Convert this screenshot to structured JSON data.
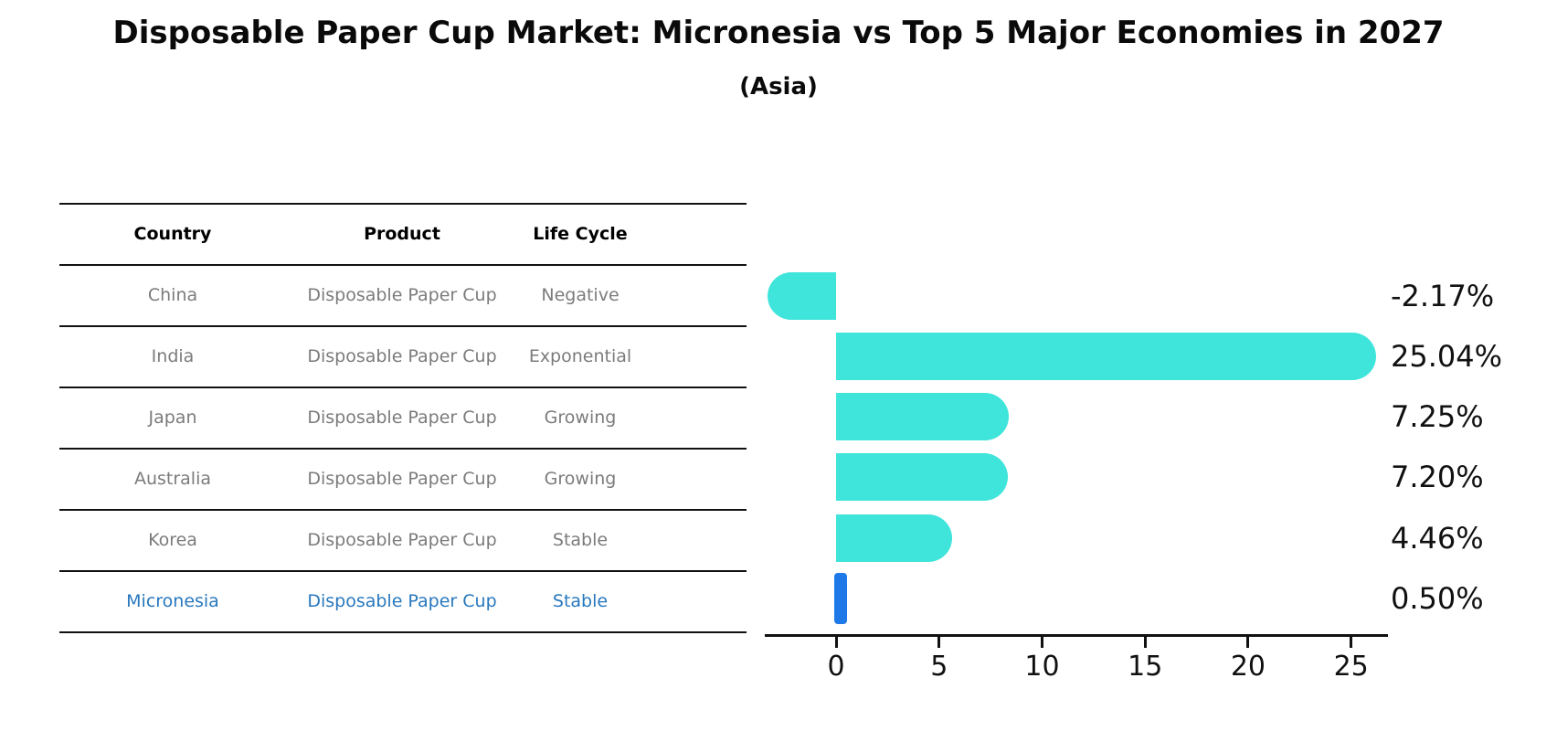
{
  "title": "Disposable Paper Cup Market: Micronesia vs Top 5 Major Economies in 2027",
  "subtitle": "(Asia)",
  "table": {
    "headers": [
      "Country",
      "Product",
      "Life Cycle"
    ],
    "rows": [
      {
        "country": "China",
        "product": "Disposable Paper Cup",
        "life_cycle": "Negative",
        "highlight": false
      },
      {
        "country": "India",
        "product": "Disposable Paper Cup",
        "life_cycle": "Exponential",
        "highlight": false
      },
      {
        "country": "Japan",
        "product": "Disposable Paper Cup",
        "life_cycle": "Growing",
        "highlight": false
      },
      {
        "country": "Australia",
        "product": "Disposable Paper Cup",
        "life_cycle": "Growing",
        "highlight": false
      },
      {
        "country": "Korea",
        "product": "Disposable Paper Cup",
        "life_cycle": "Stable",
        "highlight": false
      },
      {
        "country": "Micronesia",
        "product": "Disposable Paper Cup",
        "life_cycle": "Stable",
        "highlight": true
      }
    ]
  },
  "chart_data": {
    "type": "bar",
    "orientation": "horizontal",
    "title": "Disposable Paper Cup Market: Micronesia vs Top 5 Major Economies in 2027 (Asia)",
    "categories": [
      "China",
      "India",
      "Japan",
      "Australia",
      "Korea",
      "Micronesia"
    ],
    "values": [
      -2.17,
      25.04,
      7.25,
      7.2,
      4.46,
      0.5
    ],
    "value_labels": [
      "-2.17%",
      "25.04%",
      "7.25%",
      "7.20%",
      "4.46%",
      "0.50%"
    ],
    "x_ticks": [
      0,
      5,
      10,
      15,
      20,
      25
    ],
    "xlim": [
      -3.46,
      26.7
    ],
    "grid": false,
    "legend": false,
    "bar_color": "#3fe4db",
    "highlight_color": "#1e78e8",
    "highlight_index": 5
  }
}
